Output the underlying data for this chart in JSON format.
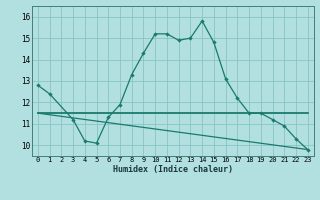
{
  "xlabel": "Humidex (Indice chaleur)",
  "background_color": "#b2dfdf",
  "grid_color": "#89c4c4",
  "line_color": "#1a7a6e",
  "x_values": [
    0,
    1,
    2,
    3,
    4,
    5,
    6,
    7,
    8,
    9,
    10,
    11,
    12,
    13,
    14,
    15,
    16,
    17,
    18,
    19,
    20,
    21,
    22,
    23
  ],
  "line1_y": [
    12.8,
    12.4,
    null,
    11.2,
    10.2,
    10.1,
    11.3,
    11.9,
    13.3,
    14.3,
    15.2,
    15.2,
    14.9,
    15.0,
    15.8,
    14.8,
    13.1,
    12.2,
    11.5,
    11.5,
    11.2,
    10.9,
    10.3,
    9.8
  ],
  "flat_line_start": 0,
  "flat_line_end": 23,
  "flat_line_y_start": 11.5,
  "flat_line_y_end": 11.5,
  "diagonal_line_y_start": 11.5,
  "diagonal_line_y_end": 9.8,
  "ylim": [
    9.5,
    16.5
  ],
  "yticks": [
    10,
    11,
    12,
    13,
    14,
    15,
    16
  ],
  "xticks": [
    0,
    1,
    2,
    3,
    4,
    5,
    6,
    7,
    8,
    9,
    10,
    11,
    12,
    13,
    14,
    15,
    16,
    17,
    18,
    19,
    20,
    21,
    22,
    23
  ],
  "xlabel_fontsize": 6.0,
  "tick_fontsize": 5.0
}
